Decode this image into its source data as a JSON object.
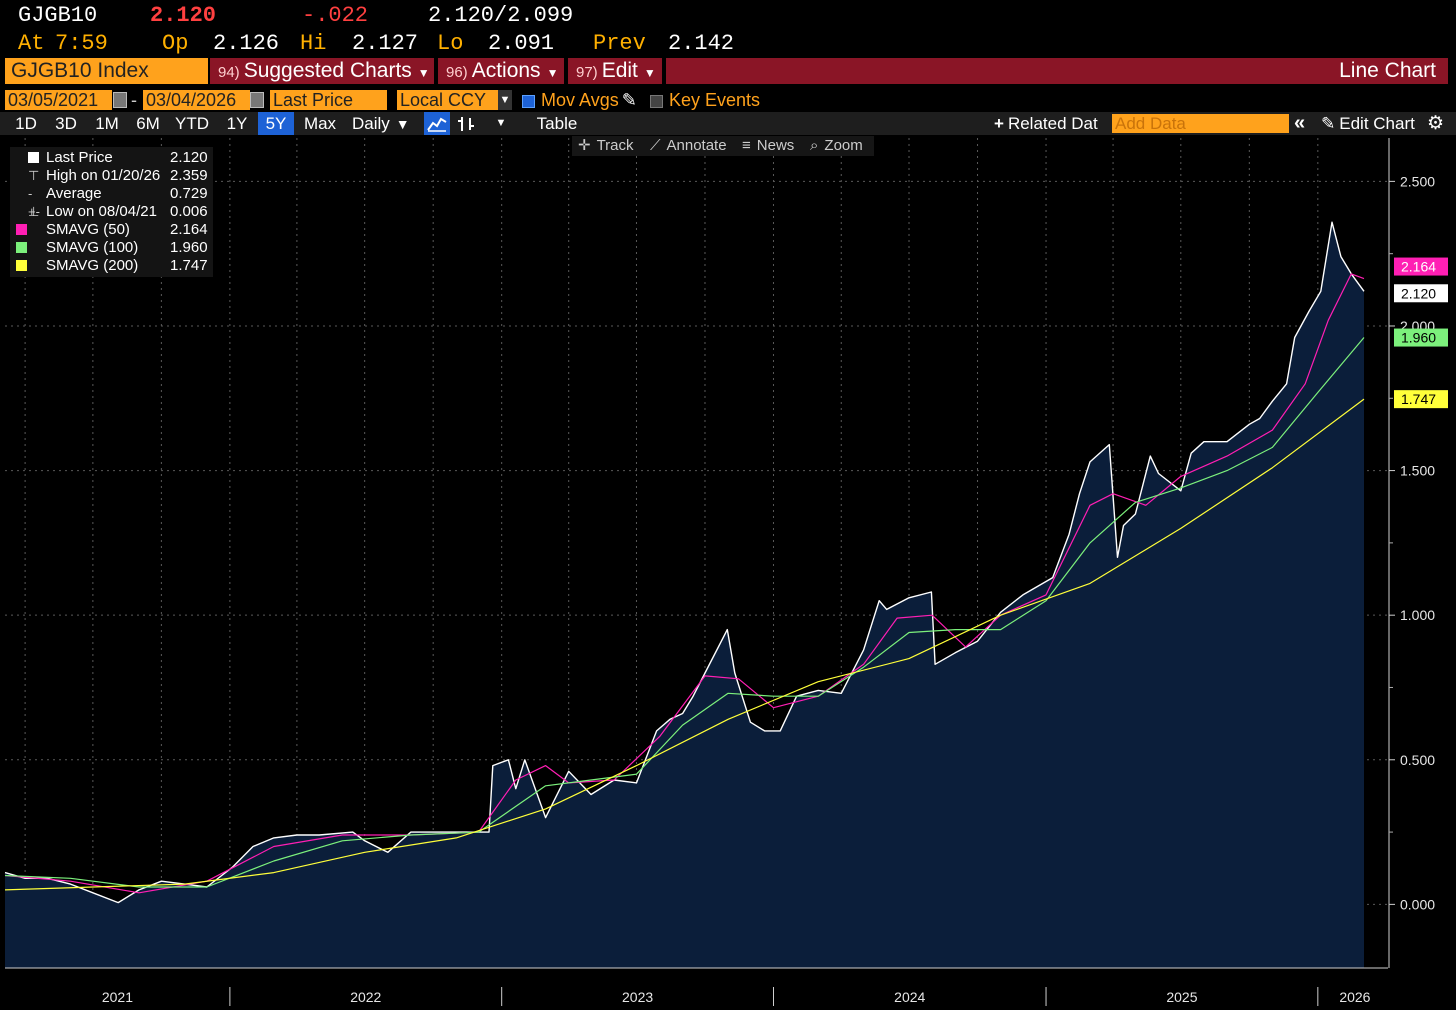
{
  "quote": {
    "ticker": "GJGB10",
    "last": "2.120",
    "change": "-.022",
    "bid_ask": "2.120/2.099",
    "at_label": "At",
    "time": "7:59",
    "open_label": "Op",
    "open": "2.126",
    "high_label": "Hi",
    "high": "2.127",
    "low_label": "Lo",
    "low": "2.091",
    "prev_label": "Prev",
    "prev": "2.142"
  },
  "menu": {
    "security": "GJGB10 Index",
    "suggested": {
      "num": "94)",
      "label": "Suggested Charts"
    },
    "actions": {
      "num": "96)",
      "label": "Actions"
    },
    "edit": {
      "num": "97)",
      "label": "Edit"
    },
    "chart_type": "Line Chart"
  },
  "filters": {
    "start_date": "03/05/2021",
    "dash": "-",
    "end_date": "03/04/2026",
    "field": "Last Price",
    "currency": "Local CCY",
    "mov_avgs": "Mov Avgs",
    "key_events": "Key Events"
  },
  "ranges": {
    "items": [
      "1D",
      "3D",
      "1M",
      "6M",
      "YTD",
      "1Y",
      "5Y",
      "Max"
    ],
    "active": "5Y",
    "frequency": "Daily",
    "table": "Table",
    "related": "Related Dat",
    "add_data": "Add Data",
    "edit_chart": "Edit Chart"
  },
  "tools": {
    "track": "Track",
    "annotate": "Annotate",
    "news": "News",
    "zoom": "Zoom"
  },
  "legend": [
    {
      "name": "Last Price",
      "value": "2.120",
      "color": "#ffffff"
    },
    {
      "name": "High on 01/20/26",
      "value": "2.359",
      "color": "#ffffff"
    },
    {
      "name": "Average",
      "value": "0.729",
      "color": "#ffffff"
    },
    {
      "name": "Low on 08/04/21",
      "value": "0.006",
      "color": "#ffffff"
    },
    {
      "name": "SMAVG (50)",
      "value": "2.164",
      "color": "#ff1fb4"
    },
    {
      "name": "SMAVG (100)",
      "value": "1.960",
      "color": "#7cf07c"
    },
    {
      "name": "SMAVG (200)",
      "value": "1.747",
      "color": "#ffff3a"
    }
  ],
  "chart_data": {
    "type": "area",
    "ylim": [
      -0.22,
      2.65
    ],
    "y_ticks": [
      0.0,
      0.5,
      1.0,
      1.5,
      2.0,
      2.5
    ],
    "y_tick_labels": [
      "0.000",
      "0.500",
      "1.000",
      "1.500",
      "2.000",
      "2.500"
    ],
    "x_labels": [
      "2021",
      "2022",
      "2023",
      "2024",
      "2025",
      "2026"
    ],
    "x_start": "2021-03-05",
    "x_end": "2026-03-04",
    "year_boundaries": [
      "2022-01-01",
      "2023-01-01",
      "2024-01-01",
      "2025-01-01",
      "2026-01-01"
    ],
    "series": [
      {
        "name": "Last Price",
        "color": "#ffffff",
        "fill": "#0b1e3a",
        "x": [
          "2021-03-05",
          "2021-04-01",
          "2021-05-01",
          "2021-06-01",
          "2021-07-01",
          "2021-08-04",
          "2021-09-01",
          "2021-10-01",
          "2021-11-01",
          "2021-12-01",
          "2022-01-05",
          "2022-02-01",
          "2022-03-01",
          "2022-04-01",
          "2022-05-01",
          "2022-06-15",
          "2022-07-01",
          "2022-08-01",
          "2022-09-01",
          "2022-10-01",
          "2022-11-01",
          "2022-12-15",
          "2022-12-20",
          "2023-01-10",
          "2023-01-20",
          "2023-02-01",
          "2023-03-01",
          "2023-04-01",
          "2023-05-01",
          "2023-06-01",
          "2023-07-01",
          "2023-07-28",
          "2023-08-15",
          "2023-09-01",
          "2023-09-15",
          "2023-10-01",
          "2023-10-31",
          "2023-11-10",
          "2023-12-01",
          "2023-12-20",
          "2024-01-10",
          "2024-02-01",
          "2024-03-01",
          "2024-04-01",
          "2024-05-01",
          "2024-05-22",
          "2024-06-01",
          "2024-07-01",
          "2024-07-31",
          "2024-08-05",
          "2024-09-01",
          "2024-10-01",
          "2024-11-01",
          "2024-12-01",
          "2025-01-10",
          "2025-02-01",
          "2025-02-15",
          "2025-03-01",
          "2025-03-27",
          "2025-04-07",
          "2025-04-15",
          "2025-05-01",
          "2025-05-21",
          "2025-06-01",
          "2025-07-01",
          "2025-07-15",
          "2025-08-01",
          "2025-09-01",
          "2025-10-01",
          "2025-10-15",
          "2025-11-01",
          "2025-11-20",
          "2025-12-01",
          "2025-12-20",
          "2026-01-05",
          "2026-01-20",
          "2026-02-01",
          "2026-02-15",
          "2026-03-04"
        ],
        "values": [
          0.11,
          0.09,
          0.09,
          0.07,
          0.04,
          0.006,
          0.05,
          0.08,
          0.07,
          0.06,
          0.13,
          0.2,
          0.23,
          0.24,
          0.24,
          0.25,
          0.22,
          0.18,
          0.25,
          0.25,
          0.25,
          0.25,
          0.48,
          0.5,
          0.4,
          0.5,
          0.3,
          0.46,
          0.38,
          0.43,
          0.42,
          0.6,
          0.64,
          0.66,
          0.72,
          0.8,
          0.95,
          0.8,
          0.63,
          0.6,
          0.6,
          0.72,
          0.74,
          0.73,
          0.88,
          1.05,
          1.02,
          1.06,
          1.08,
          0.83,
          0.87,
          0.91,
          1.01,
          1.07,
          1.13,
          1.28,
          1.42,
          1.53,
          1.59,
          1.2,
          1.31,
          1.35,
          1.55,
          1.49,
          1.43,
          1.56,
          1.6,
          1.6,
          1.66,
          1.68,
          1.74,
          1.8,
          1.96,
          2.05,
          2.12,
          2.359,
          2.24,
          2.18,
          2.12
        ]
      },
      {
        "name": "SMAVG (50)",
        "color": "#ff1fb4",
        "x": [
          "2021-03-05",
          "2021-06-01",
          "2021-09-01",
          "2021-12-01",
          "2022-03-01",
          "2022-06-01",
          "2022-09-01",
          "2022-12-01",
          "2023-01-20",
          "2023-03-01",
          "2023-04-01",
          "2023-06-01",
          "2023-08-01",
          "2023-10-01",
          "2023-11-15",
          "2024-01-01",
          "2024-03-01",
          "2024-05-01",
          "2024-06-15",
          "2024-08-01",
          "2024-09-15",
          "2024-11-01",
          "2025-01-01",
          "2025-03-01",
          "2025-04-01",
          "2025-05-15",
          "2025-07-01",
          "2025-09-01",
          "2025-11-01",
          "2025-12-15",
          "2026-01-15",
          "2026-02-15",
          "2026-03-04"
        ],
        "values": [
          0.1,
          0.08,
          0.04,
          0.08,
          0.2,
          0.24,
          0.24,
          0.25,
          0.43,
          0.48,
          0.42,
          0.43,
          0.58,
          0.79,
          0.78,
          0.68,
          0.72,
          0.83,
          0.99,
          1.0,
          0.89,
          1.0,
          1.07,
          1.38,
          1.42,
          1.38,
          1.48,
          1.55,
          1.64,
          1.8,
          2.02,
          2.18,
          2.164
        ]
      },
      {
        "name": "SMAVG (100)",
        "color": "#7cf07c",
        "x": [
          "2021-03-05",
          "2021-06-01",
          "2021-09-01",
          "2021-12-01",
          "2022-03-01",
          "2022-06-01",
          "2022-09-01",
          "2022-12-01",
          "2023-03-01",
          "2023-05-01",
          "2023-07-01",
          "2023-09-01",
          "2023-11-01",
          "2024-01-01",
          "2024-03-01",
          "2024-05-01",
          "2024-07-01",
          "2024-09-01",
          "2024-11-01",
          "2025-01-01",
          "2025-03-01",
          "2025-05-01",
          "2025-07-01",
          "2025-09-01",
          "2025-11-01",
          "2026-01-01",
          "2026-03-04"
        ],
        "values": [
          0.1,
          0.09,
          0.06,
          0.06,
          0.15,
          0.22,
          0.24,
          0.25,
          0.41,
          0.43,
          0.45,
          0.62,
          0.73,
          0.72,
          0.72,
          0.82,
          0.94,
          0.95,
          0.95,
          1.05,
          1.25,
          1.39,
          1.44,
          1.5,
          1.58,
          1.77,
          1.96
        ]
      },
      {
        "name": "SMAVG (200)",
        "color": "#ffff3a",
        "x": [
          "2021-03-05",
          "2021-07-01",
          "2021-11-01",
          "2022-03-01",
          "2022-07-01",
          "2022-11-01",
          "2023-03-01",
          "2023-07-01",
          "2023-11-01",
          "2024-03-01",
          "2024-07-01",
          "2024-11-01",
          "2025-03-01",
          "2025-07-01",
          "2025-11-01",
          "2026-03-04"
        ],
        "values": [
          0.05,
          0.06,
          0.07,
          0.11,
          0.18,
          0.23,
          0.33,
          0.48,
          0.64,
          0.77,
          0.85,
          1.0,
          1.11,
          1.3,
          1.51,
          1.747
        ]
      }
    ]
  }
}
